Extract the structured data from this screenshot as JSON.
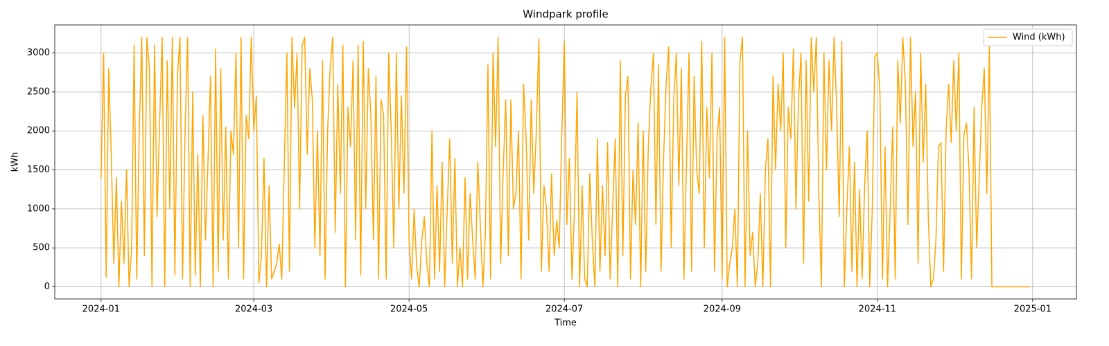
{
  "chart_data": {
    "type": "line",
    "title": "Windpark profile",
    "x_label": "Time",
    "y_label": "kWh",
    "xlim": [
      -18.2,
      383.2
    ],
    "ylim": [
      -155,
      3360
    ],
    "xticks": [
      {
        "value": 0,
        "label": "2024-01"
      },
      {
        "value": 60,
        "label": "2024-03"
      },
      {
        "value": 121,
        "label": "2024-05"
      },
      {
        "value": 182,
        "label": "2024-07"
      },
      {
        "value": 244,
        "label": "2024-09"
      },
      {
        "value": 305,
        "label": "2024-11"
      },
      {
        "value": 366,
        "label": "2025-01"
      }
    ],
    "yticks": [
      0,
      500,
      1000,
      1500,
      2000,
      2500,
      3000
    ],
    "grid": true,
    "legend": "upper right",
    "x": [
      0,
      1,
      2,
      3,
      4,
      5,
      6,
      7,
      8,
      9,
      10,
      11,
      12,
      13,
      14,
      15,
      16,
      17,
      18,
      19,
      20,
      21,
      22,
      23,
      24,
      25,
      26,
      27,
      28,
      29,
      30,
      31,
      32,
      33,
      34,
      35,
      36,
      37,
      38,
      39,
      40,
      41,
      42,
      43,
      44,
      45,
      46,
      47,
      48,
      49,
      50,
      51,
      52,
      53,
      54,
      55,
      56,
      57,
      58,
      59,
      60,
      61,
      62,
      63,
      64,
      65,
      66,
      67,
      68,
      69,
      70,
      71,
      72,
      73,
      74,
      75,
      76,
      77,
      78,
      79,
      80,
      81,
      82,
      83,
      84,
      85,
      86,
      87,
      88,
      89,
      90,
      91,
      92,
      93,
      94,
      95,
      96,
      97,
      98,
      99,
      100,
      101,
      102,
      103,
      104,
      105,
      106,
      107,
      108,
      109,
      110,
      111,
      112,
      113,
      114,
      115,
      116,
      117,
      118,
      119,
      120,
      121,
      122,
      123,
      124,
      125,
      126,
      127,
      128,
      129,
      130,
      131,
      132,
      133,
      134,
      135,
      136,
      137,
      138,
      139,
      140,
      141,
      142,
      143,
      144,
      145,
      146,
      147,
      148,
      149,
      150,
      151,
      152,
      153,
      154,
      155,
      156,
      157,
      158,
      159,
      160,
      161,
      162,
      163,
      164,
      165,
      166,
      167,
      168,
      169,
      170,
      171,
      172,
      173,
      174,
      175,
      176,
      177,
      178,
      179,
      180,
      181,
      182,
      183,
      184,
      185,
      186,
      187,
      188,
      189,
      190,
      191,
      192,
      193,
      194,
      195,
      196,
      197,
      198,
      199,
      200,
      201,
      202,
      203,
      204,
      205,
      206,
      207,
      208,
      209,
      210,
      211,
      212,
      213,
      214,
      215,
      216,
      217,
      218,
      219,
      220,
      221,
      222,
      223,
      224,
      225,
      226,
      227,
      228,
      229,
      230,
      231,
      232,
      233,
      234,
      235,
      236,
      237,
      238,
      239,
      240,
      241,
      242,
      243,
      244,
      245,
      246,
      247,
      248,
      249,
      250,
      251,
      252,
      253,
      254,
      255,
      256,
      257,
      258,
      259,
      260,
      261,
      262,
      263,
      264,
      265,
      266,
      267,
      268,
      269,
      270,
      271,
      272,
      273,
      274,
      275,
      276,
      277,
      278,
      279,
      280,
      281,
      282,
      283,
      284,
      285,
      286,
      287,
      288,
      289,
      290,
      291,
      292,
      293,
      294,
      295,
      296,
      297,
      298,
      299,
      300,
      301,
      302,
      303,
      304,
      305,
      306,
      307,
      308,
      309,
      310,
      311,
      312,
      313,
      314,
      315,
      316,
      317,
      318,
      319,
      320,
      321,
      322,
      323,
      324,
      325,
      326,
      327,
      328,
      329,
      330,
      331,
      332,
      333,
      334,
      335,
      336,
      337,
      338,
      339,
      340,
      341,
      342,
      343,
      344,
      345,
      346,
      347,
      348,
      349,
      350,
      351,
      352,
      353,
      354,
      355,
      356,
      357,
      358,
      359,
      360,
      361,
      362,
      363,
      364,
      365
    ],
    "series": [
      {
        "name": "Wind (kWh)",
        "color": "#ffa500",
        "values": [
          1400,
          3000,
          120,
          2800,
          1700,
          300,
          1400,
          0,
          1100,
          300,
          1500,
          0,
          500,
          3100,
          100,
          2000,
          3200,
          400,
          3200,
          2800,
          0,
          3100,
          900,
          2100,
          3200,
          0,
          2900,
          1000,
          3200,
          150,
          2700,
          3200,
          100,
          2000,
          3200,
          0,
          2500,
          150,
          1700,
          0,
          2200,
          600,
          1600,
          2700,
          0,
          3050,
          200,
          2800,
          600,
          2050,
          100,
          2000,
          1700,
          3000,
          500,
          3200,
          100,
          2200,
          1900,
          3200,
          2000,
          2450,
          50,
          400,
          1650,
          0,
          1300,
          100,
          200,
          300,
          550,
          100,
          1600,
          3000,
          200,
          3200,
          2300,
          3000,
          1000,
          3100,
          3200,
          1700,
          2800,
          2400,
          500,
          2000,
          400,
          2900,
          100,
          2000,
          2800,
          3200,
          700,
          2600,
          1200,
          3100,
          0,
          2300,
          1800,
          2900,
          600,
          3100,
          150,
          3150,
          1000,
          2800,
          2200,
          600,
          2700,
          100,
          2400,
          2200,
          100,
          3000,
          2000,
          500,
          3000,
          1000,
          2450,
          1200,
          3080,
          600,
          100,
          1000,
          250,
          0,
          600,
          900,
          300,
          0,
          2000,
          100,
          1300,
          200,
          1600,
          0,
          1000,
          1900,
          300,
          1650,
          0,
          500,
          0,
          1400,
          100,
          1200,
          600,
          100,
          1600,
          800,
          0,
          700,
          2850,
          100,
          3000,
          1800,
          3200,
          300,
          1500,
          2400,
          400,
          2400,
          1000,
          1200,
          2000,
          100,
          2600,
          1900,
          600,
          2400,
          1200,
          2000,
          3180,
          200,
          1300,
          1000,
          200,
          1450,
          400,
          850,
          500,
          1950,
          3150,
          800,
          1650,
          100,
          1000,
          2500,
          0,
          1300,
          100,
          0,
          1450,
          600,
          0,
          1900,
          200,
          1300,
          400,
          1850,
          100,
          1000,
          1900,
          0,
          2900,
          400,
          2450,
          2700,
          100,
          1500,
          800,
          2100,
          0,
          2000,
          200,
          1800,
          2550,
          3000,
          800,
          2850,
          200,
          1650,
          2600,
          3080,
          500,
          2400,
          3000,
          1300,
          2800,
          100,
          1600,
          3000,
          200,
          2700,
          1500,
          1200,
          3150,
          500,
          2300,
          1400,
          3000,
          200,
          1900,
          2300,
          100,
          3200,
          0,
          300,
          500,
          1000,
          0,
          2890,
          3200,
          0,
          2000,
          400,
          700,
          0,
          300,
          1200,
          0,
          1500,
          1900,
          0,
          2700,
          1500,
          2600,
          2000,
          3000,
          500,
          2300,
          1900,
          3050,
          1000,
          2400,
          3000,
          300,
          2900,
          1100,
          3200,
          2500,
          3200,
          1200,
          0,
          3000,
          1500,
          2900,
          2000,
          3200,
          2300,
          900,
          3150,
          0,
          1000,
          1800,
          200,
          1600,
          0,
          1250,
          100,
          1300,
          2000,
          0,
          1000,
          2950,
          3000,
          2500,
          100,
          1800,
          0,
          950,
          2050,
          100,
          2900,
          2100,
          3200,
          2600,
          800,
          3200,
          1800,
          2500,
          300,
          3000,
          1600,
          2600,
          900,
          0,
          100,
          600,
          1800,
          1850,
          200,
          2000,
          2600,
          1850,
          2900,
          2000,
          3000,
          100,
          1950,
          2100,
          1500,
          100,
          2300,
          500,
          1400,
          2300,
          2800,
          1200,
          3080,
          0,
          0,
          0,
          0,
          0,
          0,
          0,
          0,
          0,
          0,
          0,
          0,
          0,
          0,
          0,
          0
        ]
      }
    ]
  }
}
